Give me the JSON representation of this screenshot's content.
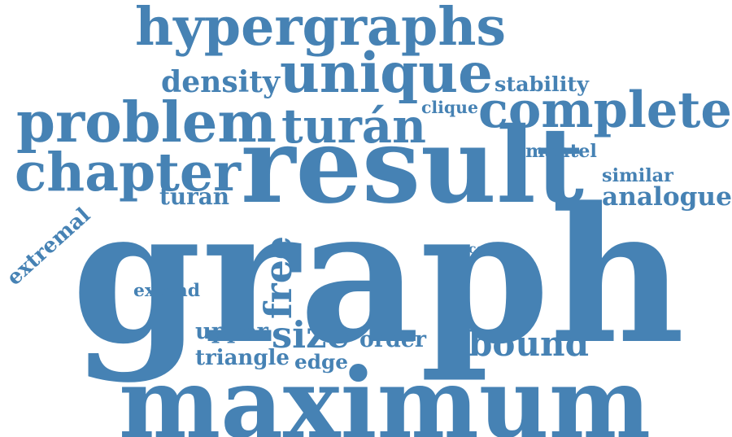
{
  "cloud": {
    "color": "#4682b4",
    "words": [
      {
        "key": "graph",
        "text": "graph"
      },
      {
        "key": "maximum",
        "text": "maximum"
      },
      {
        "key": "result",
        "text": "result"
      },
      {
        "key": "hypergraphs",
        "text": "hypergraphs"
      },
      {
        "key": "unique",
        "text": "unique"
      },
      {
        "key": "problem",
        "text": "problem"
      },
      {
        "key": "complete",
        "text": "complete"
      },
      {
        "key": "chapter",
        "text": "chapter"
      },
      {
        "key": "turan-accent",
        "text": "turán"
      },
      {
        "key": "density",
        "text": "density"
      },
      {
        "key": "stability",
        "text": "stability"
      },
      {
        "key": "clique",
        "text": "clique"
      },
      {
        "key": "mantel",
        "text": "mantel"
      },
      {
        "key": "similar",
        "text": "similar"
      },
      {
        "key": "analogue",
        "text": "analogue"
      },
      {
        "key": "turan",
        "text": "turan"
      },
      {
        "key": "extremal",
        "text": "extremal"
      },
      {
        "key": "free",
        "text": "free"
      },
      {
        "key": "copy",
        "text": "copy"
      },
      {
        "key": "extend",
        "text": "extend"
      },
      {
        "key": "upper",
        "text": "upper"
      },
      {
        "key": "size",
        "text": "size"
      },
      {
        "key": "order",
        "text": "order"
      },
      {
        "key": "bound",
        "text": "bound"
      },
      {
        "key": "triangle",
        "text": "triangle"
      },
      {
        "key": "edge",
        "text": "edge"
      }
    ]
  }
}
